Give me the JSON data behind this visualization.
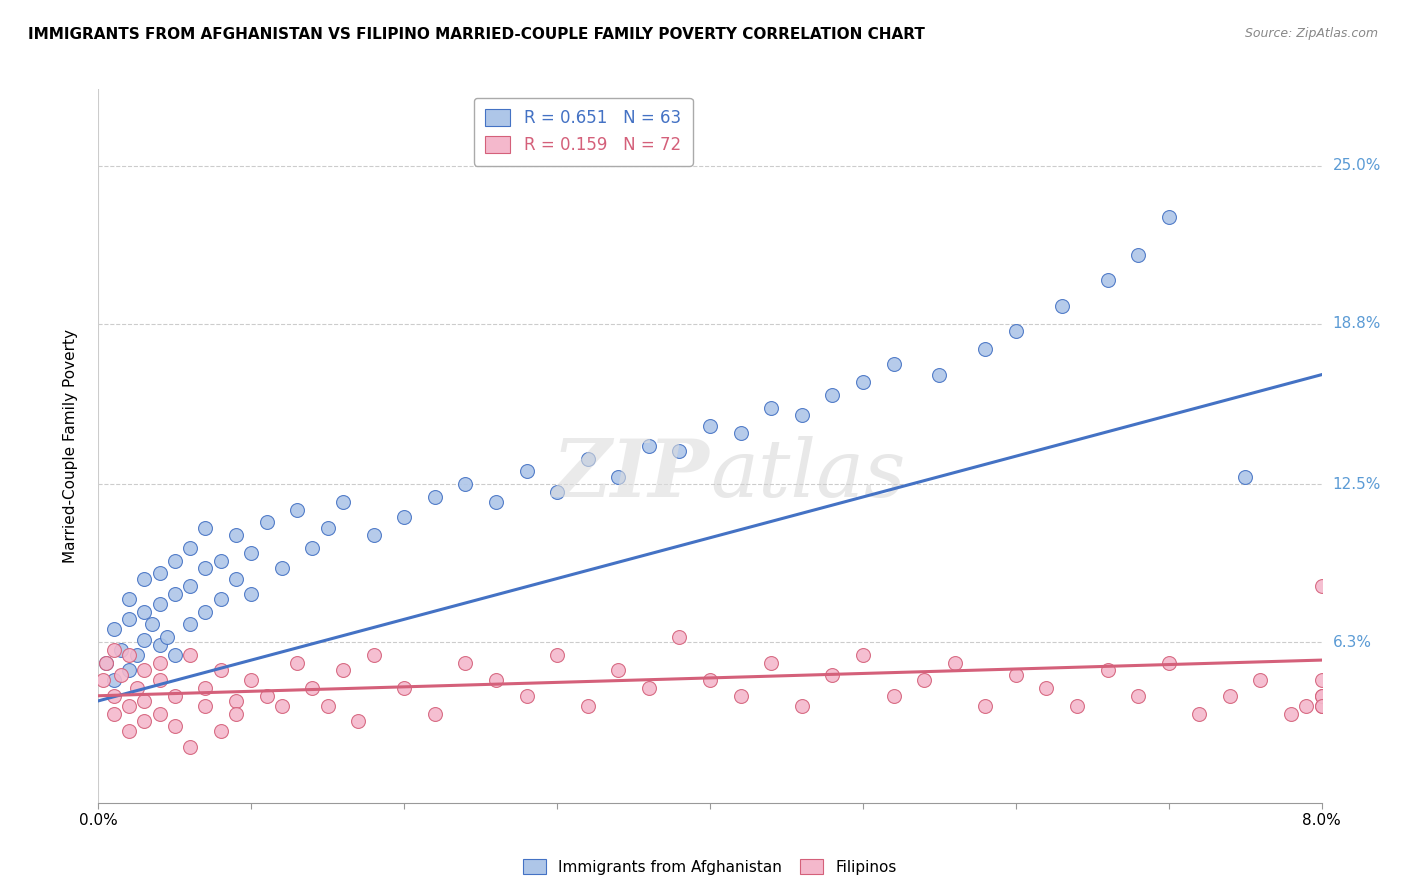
{
  "title": "IMMIGRANTS FROM AFGHANISTAN VS FILIPINO MARRIED-COUPLE FAMILY POVERTY CORRELATION CHART",
  "source": "Source: ZipAtlas.com",
  "ylabel": "Married-Couple Family Poverty",
  "ytick_labels": [
    "6.3%",
    "12.5%",
    "18.8%",
    "25.0%"
  ],
  "ytick_values": [
    0.063,
    0.125,
    0.188,
    0.25
  ],
  "xlim": [
    0.0,
    0.08
  ],
  "ylim": [
    0.0,
    0.28
  ],
  "afghanistan_R": 0.651,
  "afghanistan_N": 63,
  "filipino_R": 0.159,
  "filipino_N": 72,
  "afghanistan_color": "#aec6e8",
  "afghanistan_line_color": "#4472c4",
  "filipino_color": "#f4b8cc",
  "filipino_line_color": "#d4607a",
  "afghanistan_scatter_x": [
    0.0005,
    0.001,
    0.001,
    0.0015,
    0.002,
    0.002,
    0.002,
    0.0025,
    0.003,
    0.003,
    0.003,
    0.0035,
    0.004,
    0.004,
    0.004,
    0.0045,
    0.005,
    0.005,
    0.005,
    0.006,
    0.006,
    0.006,
    0.007,
    0.007,
    0.007,
    0.008,
    0.008,
    0.009,
    0.009,
    0.01,
    0.01,
    0.011,
    0.012,
    0.013,
    0.014,
    0.015,
    0.016,
    0.018,
    0.02,
    0.022,
    0.024,
    0.026,
    0.028,
    0.03,
    0.032,
    0.034,
    0.036,
    0.038,
    0.04,
    0.042,
    0.044,
    0.046,
    0.048,
    0.05,
    0.052,
    0.055,
    0.058,
    0.06,
    0.063,
    0.066,
    0.068,
    0.07,
    0.075
  ],
  "afghanistan_scatter_y": [
    0.055,
    0.048,
    0.068,
    0.06,
    0.052,
    0.072,
    0.08,
    0.058,
    0.064,
    0.075,
    0.088,
    0.07,
    0.062,
    0.078,
    0.09,
    0.065,
    0.058,
    0.082,
    0.095,
    0.07,
    0.085,
    0.1,
    0.075,
    0.092,
    0.108,
    0.08,
    0.095,
    0.088,
    0.105,
    0.082,
    0.098,
    0.11,
    0.092,
    0.115,
    0.1,
    0.108,
    0.118,
    0.105,
    0.112,
    0.12,
    0.125,
    0.118,
    0.13,
    0.122,
    0.135,
    0.128,
    0.14,
    0.138,
    0.148,
    0.145,
    0.155,
    0.152,
    0.16,
    0.165,
    0.172,
    0.168,
    0.178,
    0.185,
    0.195,
    0.205,
    0.215,
    0.23,
    0.128
  ],
  "filipino_scatter_x": [
    0.0003,
    0.0005,
    0.001,
    0.001,
    0.001,
    0.0015,
    0.002,
    0.002,
    0.002,
    0.0025,
    0.003,
    0.003,
    0.003,
    0.004,
    0.004,
    0.004,
    0.005,
    0.005,
    0.006,
    0.006,
    0.007,
    0.007,
    0.008,
    0.008,
    0.009,
    0.009,
    0.01,
    0.011,
    0.012,
    0.013,
    0.014,
    0.015,
    0.016,
    0.017,
    0.018,
    0.02,
    0.022,
    0.024,
    0.026,
    0.028,
    0.03,
    0.032,
    0.034,
    0.036,
    0.038,
    0.04,
    0.042,
    0.044,
    0.046,
    0.048,
    0.05,
    0.052,
    0.054,
    0.056,
    0.058,
    0.06,
    0.062,
    0.064,
    0.066,
    0.068,
    0.07,
    0.072,
    0.074,
    0.076,
    0.078,
    0.079,
    0.08,
    0.08,
    0.08,
    0.08,
    0.08,
    0.08
  ],
  "filipino_scatter_y": [
    0.048,
    0.055,
    0.042,
    0.06,
    0.035,
    0.05,
    0.038,
    0.058,
    0.028,
    0.045,
    0.04,
    0.052,
    0.032,
    0.048,
    0.035,
    0.055,
    0.042,
    0.03,
    0.058,
    0.022,
    0.045,
    0.038,
    0.052,
    0.028,
    0.04,
    0.035,
    0.048,
    0.042,
    0.038,
    0.055,
    0.045,
    0.038,
    0.052,
    0.032,
    0.058,
    0.045,
    0.035,
    0.055,
    0.048,
    0.042,
    0.058,
    0.038,
    0.052,
    0.045,
    0.065,
    0.048,
    0.042,
    0.055,
    0.038,
    0.05,
    0.058,
    0.042,
    0.048,
    0.055,
    0.038,
    0.05,
    0.045,
    0.038,
    0.052,
    0.042,
    0.055,
    0.035,
    0.042,
    0.048,
    0.035,
    0.038,
    0.048,
    0.042,
    0.038,
    0.085,
    0.042,
    0.038
  ],
  "afghanistan_line_x": [
    0.0,
    0.08
  ],
  "afghanistan_line_y": [
    0.04,
    0.168
  ],
  "filipino_line_x": [
    0.0,
    0.08
  ],
  "filipino_line_y": [
    0.042,
    0.056
  ]
}
